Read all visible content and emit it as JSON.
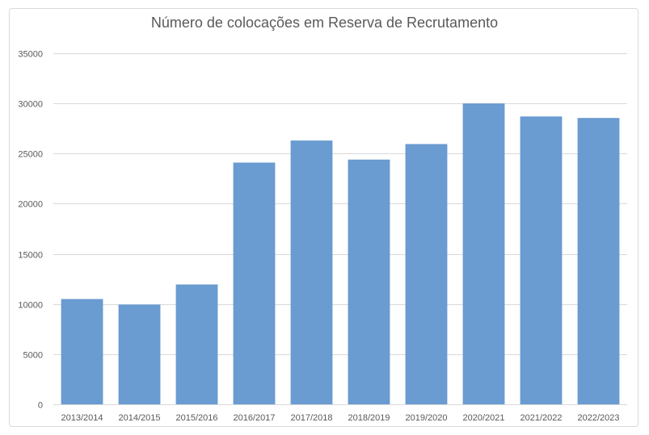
{
  "chart_data": {
    "type": "bar",
    "title": "Número de colocações em Reserva de Recrutamento",
    "categories": [
      "2013/2014",
      "2014/2015",
      "2015/2016",
      "2016/2017",
      "2017/2018",
      "2018/2019",
      "2019/2020",
      "2020/2021",
      "2021/2022",
      "2022/2023"
    ],
    "values": [
      10500,
      9950,
      11950,
      24100,
      26300,
      24400,
      25950,
      30000,
      28700,
      28550
    ],
    "ylim": [
      0,
      35000
    ],
    "yticks": [
      0,
      5000,
      10000,
      15000,
      20000,
      25000,
      30000,
      35000
    ],
    "grid": true,
    "legend": "none",
    "bar_color": "#6a9bd1",
    "grid_color": "#d9d9d9",
    "text_color": "#595959"
  }
}
